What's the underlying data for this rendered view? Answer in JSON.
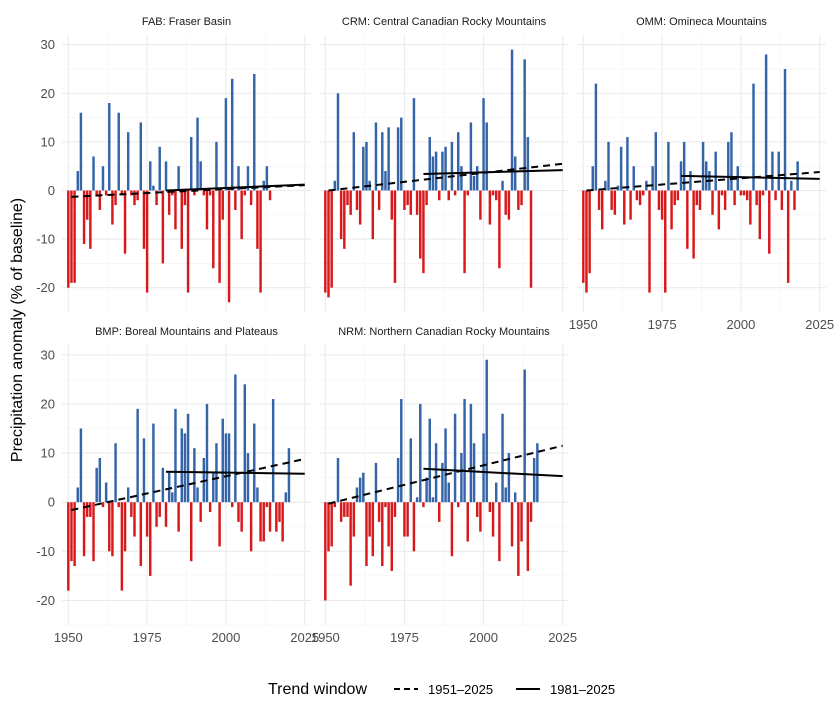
{
  "chart_data": {
    "type": "bar",
    "ylabel": "Precipitation anomaly (% of baseline)",
    "x_ticks": [
      1950,
      1975,
      2000,
      2025
    ],
    "y_ticks": [
      -20,
      -10,
      0,
      10,
      20,
      30
    ],
    "xlim": [
      1948,
      2027
    ],
    "ylim": [
      -25,
      32
    ],
    "colors": {
      "positive": "#3565a8",
      "negative": "#d7191c",
      "trend": "#000000",
      "grid": "#ebebeb"
    },
    "legend": {
      "title": "Trend window",
      "position": "bottom",
      "items": [
        {
          "label": "1951–2025",
          "style": "dashed"
        },
        {
          "label": "1981–2025",
          "style": "solid"
        }
      ]
    },
    "panels": [
      {
        "title": "FAB: Fraser Basin",
        "start_year": 1950,
        "values": [
          -20,
          -19,
          -19,
          4,
          16,
          -11,
          -6,
          -12,
          7,
          -1,
          -4,
          5,
          -1,
          18,
          -7,
          -3,
          16,
          -1,
          -13,
          12,
          -1,
          -3,
          -2,
          14,
          -12,
          -21,
          6,
          1,
          -3,
          9,
          -15,
          6,
          -5,
          -1,
          -8,
          5,
          -12,
          -3,
          -21,
          11,
          -1,
          15,
          6,
          -1,
          -8,
          -1,
          -16,
          10,
          -19,
          -6,
          19,
          -23,
          23,
          -4,
          5,
          -10,
          -1,
          5,
          -3,
          24,
          -12,
          -21,
          2,
          5,
          -2
        ],
        "trends": [
          {
            "window": "1951–2025",
            "start": [
              1951,
              -1.3
            ],
            "end": [
              2025,
              1.1
            ]
          },
          {
            "window": "1981–2025",
            "start": [
              1981,
              0.0
            ],
            "end": [
              2025,
              1.2
            ]
          }
        ]
      },
      {
        "title": "CRM: Central Canadian Rocky Mountains",
        "start_year": 1950,
        "values": [
          -21,
          -22,
          -20,
          2,
          20,
          -10,
          -12,
          -3,
          -5,
          12,
          -4,
          -7,
          9,
          10,
          2,
          -10,
          14,
          -4,
          12,
          4,
          13,
          -6,
          -19,
          13,
          15,
          -4,
          -3,
          -5,
          19,
          -5,
          -14,
          -17,
          -3,
          11,
          7,
          8,
          -2,
          8,
          9,
          -2,
          10,
          -1,
          12,
          5,
          -17,
          -1,
          14,
          3,
          5,
          -6,
          19,
          14,
          -7,
          -1,
          -2,
          -16,
          2,
          -5,
          -6,
          29,
          7,
          -4,
          -3,
          27,
          11,
          -20
        ],
        "trends": [
          {
            "window": "1951–2025",
            "start": [
              1951,
              0.0
            ],
            "end": [
              2025,
              5.5
            ]
          },
          {
            "window": "1981–2025",
            "start": [
              1981,
              3.4
            ],
            "end": [
              2025,
              4.2
            ]
          }
        ]
      },
      {
        "title": "OMM: Omineca Mountains",
        "start_year": 1950,
        "values": [
          -19,
          -21,
          -17,
          5,
          22,
          -4,
          -8,
          2,
          10,
          -4,
          -5,
          1,
          9,
          -7,
          11,
          -6,
          5,
          -2,
          -3,
          -1,
          2,
          -21,
          5,
          12,
          -4,
          -6,
          -21,
          10,
          -8,
          -3,
          -2,
          6,
          10,
          -12,
          4,
          -14,
          -3,
          -4,
          10,
          6,
          4,
          -5,
          8,
          -8,
          -1,
          -4,
          10,
          12,
          -3,
          5,
          -1,
          -1,
          -2,
          -7,
          22,
          -3,
          -10,
          -1,
          28,
          -13,
          8,
          -2,
          8,
          -4,
          25,
          -19,
          2,
          -4,
          6
        ],
        "trends": [
          {
            "window": "1951–2025",
            "start": [
              1951,
              0.0
            ],
            "end": [
              2025,
              3.8
            ]
          },
          {
            "window": "1981–2025",
            "start": [
              1981,
              3.0
            ],
            "end": [
              2025,
              2.4
            ]
          }
        ]
      },
      {
        "title": "BMP: Boreal Mountains and Plateaus",
        "start_year": 1950,
        "values": [
          -18,
          -12,
          -13,
          3,
          15,
          -11,
          -3,
          -3,
          -12,
          7,
          9,
          -1,
          4,
          -10,
          -11,
          12,
          -1,
          -18,
          -10,
          3,
          -3,
          -7,
          19,
          -13,
          13,
          -7,
          -15,
          16,
          -5,
          -3,
          7,
          -5,
          6,
          2,
          19,
          -6,
          15,
          14,
          18,
          -12,
          11,
          3,
          -4,
          9,
          20,
          -2,
          6,
          12,
          -9,
          17,
          14,
          14,
          -1,
          26,
          -4,
          -6,
          24,
          10,
          -10,
          16,
          3,
          -8,
          -8,
          -1,
          -6,
          21,
          -6,
          -4,
          -8,
          2,
          11
        ],
        "trends": [
          {
            "window": "1951–2025",
            "start": [
              1951,
              -1.6
            ],
            "end": [
              2025,
              8.8
            ]
          },
          {
            "window": "1981–2025",
            "start": [
              1981,
              6.2
            ],
            "end": [
              2025,
              5.8
            ]
          }
        ]
      },
      {
        "title": "NRM: Northern Canadian Rocky Mountains",
        "start_year": 1950,
        "values": [
          -20,
          -10,
          -9,
          -1,
          9,
          -4,
          -3,
          -3,
          -17,
          -7,
          3,
          5,
          6,
          -13,
          -7,
          -11,
          8,
          -4,
          -13,
          -1,
          -9,
          -14,
          -3,
          9,
          21,
          -7,
          -7,
          13,
          -10,
          1,
          20,
          -1,
          5,
          17,
          1,
          12,
          -4,
          8,
          15,
          4,
          -11,
          18,
          -1,
          10,
          21,
          -8,
          20,
          12,
          -3,
          -6,
          14,
          29,
          -2,
          -7,
          4,
          -12,
          18,
          3,
          10,
          -9,
          2,
          -15,
          -8,
          27,
          -14,
          -4,
          9,
          12
        ],
        "trends": [
          {
            "window": "1951–2025",
            "start": [
              1951,
              -0.3
            ],
            "end": [
              2025,
              11.5
            ]
          },
          {
            "window": "1981–2025",
            "start": [
              1981,
              6.8
            ],
            "end": [
              2025,
              5.3
            ]
          }
        ]
      }
    ]
  }
}
